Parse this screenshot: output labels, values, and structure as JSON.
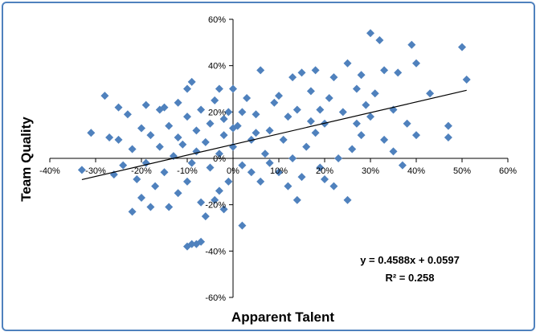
{
  "chart_data": {
    "type": "scatter",
    "xlabel": "Apparent Talent",
    "ylabel": "Team Quality",
    "xlim": [
      -0.4,
      0.6
    ],
    "ylim": [
      -0.6,
      0.6
    ],
    "x_ticks": [
      -0.4,
      -0.3,
      -0.2,
      -0.1,
      0,
      0.1,
      0.2,
      0.3,
      0.4,
      0.5,
      0.6
    ],
    "x_tick_labels": [
      "-40%",
      "-30%",
      "-20%",
      "-10%",
      "0%",
      "10%",
      "20%",
      "30%",
      "40%",
      "50%",
      "60%"
    ],
    "y_ticks": [
      -0.6,
      -0.4,
      -0.2,
      0,
      0.2,
      0.4,
      0.6
    ],
    "y_tick_labels": [
      "-60%",
      "-40%",
      "-20%",
      "0%",
      "20%",
      "40%",
      "60%"
    ],
    "grid": false,
    "legend": "none",
    "marker": "diamond",
    "colors": {
      "marker": "#4f81bd",
      "border": "#4f81bd",
      "axis": "#000000",
      "trendline": "#000000"
    },
    "trendline": {
      "slope": 0.4588,
      "intercept": 0.0597,
      "equation_label": "y = 0.4588x + 0.0597",
      "r2_label": "R² = 0.258"
    },
    "series": [
      {
        "points": [
          [
            0.3,
            0.54
          ],
          [
            0.32,
            0.51
          ],
          [
            0.5,
            0.48
          ],
          [
            0.39,
            0.49
          ],
          [
            0.4,
            0.41
          ],
          [
            0.51,
            0.34
          ],
          [
            0.28,
            0.36
          ],
          [
            0.25,
            0.41
          ],
          [
            0.33,
            0.38
          ],
          [
            0.36,
            0.37
          ],
          [
            0.22,
            0.35
          ],
          [
            0.18,
            0.38
          ],
          [
            0.15,
            0.37
          ],
          [
            0.13,
            0.35
          ],
          [
            0.06,
            0.38
          ],
          [
            -0.09,
            0.33
          ],
          [
            -0.1,
            0.3
          ],
          [
            -0.28,
            0.27
          ],
          [
            -0.25,
            0.22
          ],
          [
            -0.31,
            0.11
          ],
          [
            -0.27,
            0.09
          ],
          [
            -0.33,
            -0.05
          ],
          [
            -0.22,
            -0.23
          ],
          [
            -0.18,
            -0.21
          ],
          [
            -0.1,
            -0.38
          ],
          [
            -0.08,
            -0.37
          ],
          [
            -0.09,
            -0.37
          ],
          [
            -0.07,
            -0.36
          ],
          [
            0.02,
            -0.29
          ],
          [
            -0.02,
            -0.22
          ],
          [
            -0.04,
            -0.18
          ],
          [
            0.14,
            -0.18
          ],
          [
            0.25,
            -0.18
          ],
          [
            0.47,
            0.14
          ],
          [
            0.47,
            0.09
          ],
          [
            0.43,
            0.28
          ],
          [
            0.4,
            0.1
          ],
          [
            0.38,
            0.15
          ],
          [
            0.37,
            -0.03
          ],
          [
            0.35,
            0.03
          ],
          [
            0.3,
            0.18
          ],
          [
            0.31,
            0.28
          ],
          [
            0.28,
            0.1
          ],
          [
            0.27,
            0.3
          ],
          [
            0.26,
            0.04
          ],
          [
            0.24,
            0.2
          ],
          [
            0.23,
            0.0
          ],
          [
            0.21,
            0.26
          ],
          [
            0.2,
            0.15
          ],
          [
            0.19,
            -0.04
          ],
          [
            0.18,
            0.11
          ],
          [
            0.17,
            0.29
          ],
          [
            0.16,
            0.05
          ],
          [
            0.15,
            -0.08
          ],
          [
            0.14,
            0.21
          ],
          [
            0.13,
            0.0
          ],
          [
            0.12,
            0.18
          ],
          [
            0.11,
            0.08
          ],
          [
            0.1,
            -0.06
          ],
          [
            0.09,
            0.24
          ],
          [
            0.08,
            0.12
          ],
          [
            0.07,
            0.02
          ],
          [
            0.06,
            -0.1
          ],
          [
            0.05,
            0.19
          ],
          [
            0.04,
            0.08
          ],
          [
            0.03,
            0.26
          ],
          [
            0.02,
            -0.03
          ],
          [
            0.01,
            0.14
          ],
          [
            0.0,
            0.3
          ],
          [
            0.0,
            0.05
          ],
          [
            -0.01,
            -0.1
          ],
          [
            -0.01,
            0.2
          ],
          [
            -0.02,
            0.1
          ],
          [
            -0.03,
            0.02
          ],
          [
            -0.03,
            -0.14
          ],
          [
            -0.04,
            0.25
          ],
          [
            -0.05,
            0.15
          ],
          [
            -0.05,
            -0.04
          ],
          [
            -0.06,
            0.07
          ],
          [
            -0.07,
            0.21
          ],
          [
            -0.07,
            -0.19
          ],
          [
            -0.08,
            0.12
          ],
          [
            -0.09,
            -0.02
          ],
          [
            -0.1,
            0.18
          ],
          [
            -0.1,
            -0.1
          ],
          [
            -0.11,
            0.06
          ],
          [
            -0.12,
            0.24
          ],
          [
            -0.12,
            -0.15
          ],
          [
            -0.13,
            0.01
          ],
          [
            -0.14,
            0.14
          ],
          [
            -0.15,
            -0.06
          ],
          [
            -0.16,
            0.21
          ],
          [
            -0.16,
            0.05
          ],
          [
            -0.17,
            -0.12
          ],
          [
            -0.18,
            0.1
          ],
          [
            -0.19,
            -0.02
          ],
          [
            -0.19,
            0.23
          ],
          [
            -0.2,
            0.13
          ],
          [
            -0.21,
            -0.09
          ],
          [
            -0.22,
            0.04
          ],
          [
            -0.23,
            0.19
          ],
          [
            -0.24,
            -0.03
          ],
          [
            -0.25,
            0.08
          ],
          [
            -0.26,
            -0.07
          ],
          [
            -0.15,
            0.22
          ],
          [
            -0.12,
            0.09
          ],
          [
            -0.02,
            0.17
          ],
          [
            0.05,
            0.11
          ],
          [
            0.1,
            0.27
          ],
          [
            0.19,
            0.21
          ],
          [
            0.29,
            0.23
          ],
          [
            0.33,
            0.08
          ],
          [
            0.22,
            -0.12
          ],
          [
            0.12,
            -0.12
          ],
          [
            0.04,
            -0.06
          ],
          [
            -0.06,
            -0.25
          ],
          [
            -0.14,
            -0.21
          ],
          [
            -0.2,
            -0.17
          ],
          [
            -0.08,
            0.03
          ],
          [
            0.08,
            -0.02
          ],
          [
            0.17,
            0.16
          ],
          [
            0.27,
            0.15
          ],
          [
            0.35,
            0.21
          ],
          [
            0.2,
            -0.09
          ],
          [
            0.02,
            0.2
          ],
          [
            -0.03,
            0.3
          ],
          [
            0.0,
            0.13
          ]
        ]
      }
    ]
  }
}
